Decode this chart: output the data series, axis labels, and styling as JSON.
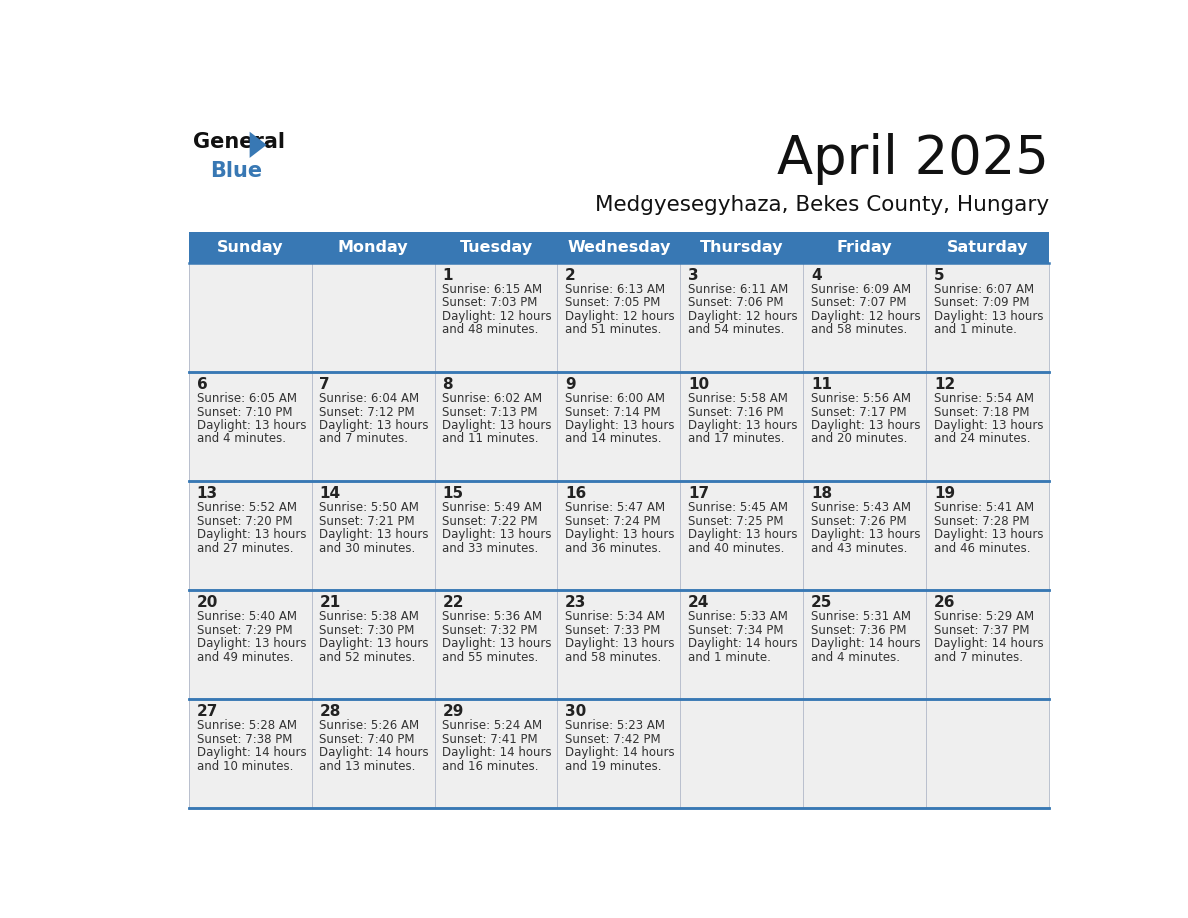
{
  "title": "April 2025",
  "subtitle": "Medgyesegyhaza, Bekes County, Hungary",
  "header_bg_color": "#3878b4",
  "header_text_color": "#ffffff",
  "cell_bg_color": "#efefef",
  "day_number_color": "#222222",
  "cell_text_color": "#333333",
  "border_color": "#3878b4",
  "line_color": "#3878b4",
  "days_of_week": [
    "Sunday",
    "Monday",
    "Tuesday",
    "Wednesday",
    "Thursday",
    "Friday",
    "Saturday"
  ],
  "weeks": [
    [
      {
        "day": "",
        "sunrise": "",
        "sunset": "",
        "daylight": ""
      },
      {
        "day": "",
        "sunrise": "",
        "sunset": "",
        "daylight": ""
      },
      {
        "day": "1",
        "sunrise": "6:15 AM",
        "sunset": "7:03 PM",
        "daylight": "12 hours\nand 48 minutes."
      },
      {
        "day": "2",
        "sunrise": "6:13 AM",
        "sunset": "7:05 PM",
        "daylight": "12 hours\nand 51 minutes."
      },
      {
        "day": "3",
        "sunrise": "6:11 AM",
        "sunset": "7:06 PM",
        "daylight": "12 hours\nand 54 minutes."
      },
      {
        "day": "4",
        "sunrise": "6:09 AM",
        "sunset": "7:07 PM",
        "daylight": "12 hours\nand 58 minutes."
      },
      {
        "day": "5",
        "sunrise": "6:07 AM",
        "sunset": "7:09 PM",
        "daylight": "13 hours\nand 1 minute."
      }
    ],
    [
      {
        "day": "6",
        "sunrise": "6:05 AM",
        "sunset": "7:10 PM",
        "daylight": "13 hours\nand 4 minutes."
      },
      {
        "day": "7",
        "sunrise": "6:04 AM",
        "sunset": "7:12 PM",
        "daylight": "13 hours\nand 7 minutes."
      },
      {
        "day": "8",
        "sunrise": "6:02 AM",
        "sunset": "7:13 PM",
        "daylight": "13 hours\nand 11 minutes."
      },
      {
        "day": "9",
        "sunrise": "6:00 AM",
        "sunset": "7:14 PM",
        "daylight": "13 hours\nand 14 minutes."
      },
      {
        "day": "10",
        "sunrise": "5:58 AM",
        "sunset": "7:16 PM",
        "daylight": "13 hours\nand 17 minutes."
      },
      {
        "day": "11",
        "sunrise": "5:56 AM",
        "sunset": "7:17 PM",
        "daylight": "13 hours\nand 20 minutes."
      },
      {
        "day": "12",
        "sunrise": "5:54 AM",
        "sunset": "7:18 PM",
        "daylight": "13 hours\nand 24 minutes."
      }
    ],
    [
      {
        "day": "13",
        "sunrise": "5:52 AM",
        "sunset": "7:20 PM",
        "daylight": "13 hours\nand 27 minutes."
      },
      {
        "day": "14",
        "sunrise": "5:50 AM",
        "sunset": "7:21 PM",
        "daylight": "13 hours\nand 30 minutes."
      },
      {
        "day": "15",
        "sunrise": "5:49 AM",
        "sunset": "7:22 PM",
        "daylight": "13 hours\nand 33 minutes."
      },
      {
        "day": "16",
        "sunrise": "5:47 AM",
        "sunset": "7:24 PM",
        "daylight": "13 hours\nand 36 minutes."
      },
      {
        "day": "17",
        "sunrise": "5:45 AM",
        "sunset": "7:25 PM",
        "daylight": "13 hours\nand 40 minutes."
      },
      {
        "day": "18",
        "sunrise": "5:43 AM",
        "sunset": "7:26 PM",
        "daylight": "13 hours\nand 43 minutes."
      },
      {
        "day": "19",
        "sunrise": "5:41 AM",
        "sunset": "7:28 PM",
        "daylight": "13 hours\nand 46 minutes."
      }
    ],
    [
      {
        "day": "20",
        "sunrise": "5:40 AM",
        "sunset": "7:29 PM",
        "daylight": "13 hours\nand 49 minutes."
      },
      {
        "day": "21",
        "sunrise": "5:38 AM",
        "sunset": "7:30 PM",
        "daylight": "13 hours\nand 52 minutes."
      },
      {
        "day": "22",
        "sunrise": "5:36 AM",
        "sunset": "7:32 PM",
        "daylight": "13 hours\nand 55 minutes."
      },
      {
        "day": "23",
        "sunrise": "5:34 AM",
        "sunset": "7:33 PM",
        "daylight": "13 hours\nand 58 minutes."
      },
      {
        "day": "24",
        "sunrise": "5:33 AM",
        "sunset": "7:34 PM",
        "daylight": "14 hours\nand 1 minute."
      },
      {
        "day": "25",
        "sunrise": "5:31 AM",
        "sunset": "7:36 PM",
        "daylight": "14 hours\nand 4 minutes."
      },
      {
        "day": "26",
        "sunrise": "5:29 AM",
        "sunset": "7:37 PM",
        "daylight": "14 hours\nand 7 minutes."
      }
    ],
    [
      {
        "day": "27",
        "sunrise": "5:28 AM",
        "sunset": "7:38 PM",
        "daylight": "14 hours\nand 10 minutes."
      },
      {
        "day": "28",
        "sunrise": "5:26 AM",
        "sunset": "7:40 PM",
        "daylight": "14 hours\nand 13 minutes."
      },
      {
        "day": "29",
        "sunrise": "5:24 AM",
        "sunset": "7:41 PM",
        "daylight": "14 hours\nand 16 minutes."
      },
      {
        "day": "30",
        "sunrise": "5:23 AM",
        "sunset": "7:42 PM",
        "daylight": "14 hours\nand 19 minutes."
      },
      {
        "day": "",
        "sunrise": "",
        "sunset": "",
        "daylight": ""
      },
      {
        "day": "",
        "sunrise": "",
        "sunset": "",
        "daylight": ""
      },
      {
        "day": "",
        "sunrise": "",
        "sunset": "",
        "daylight": ""
      }
    ]
  ]
}
